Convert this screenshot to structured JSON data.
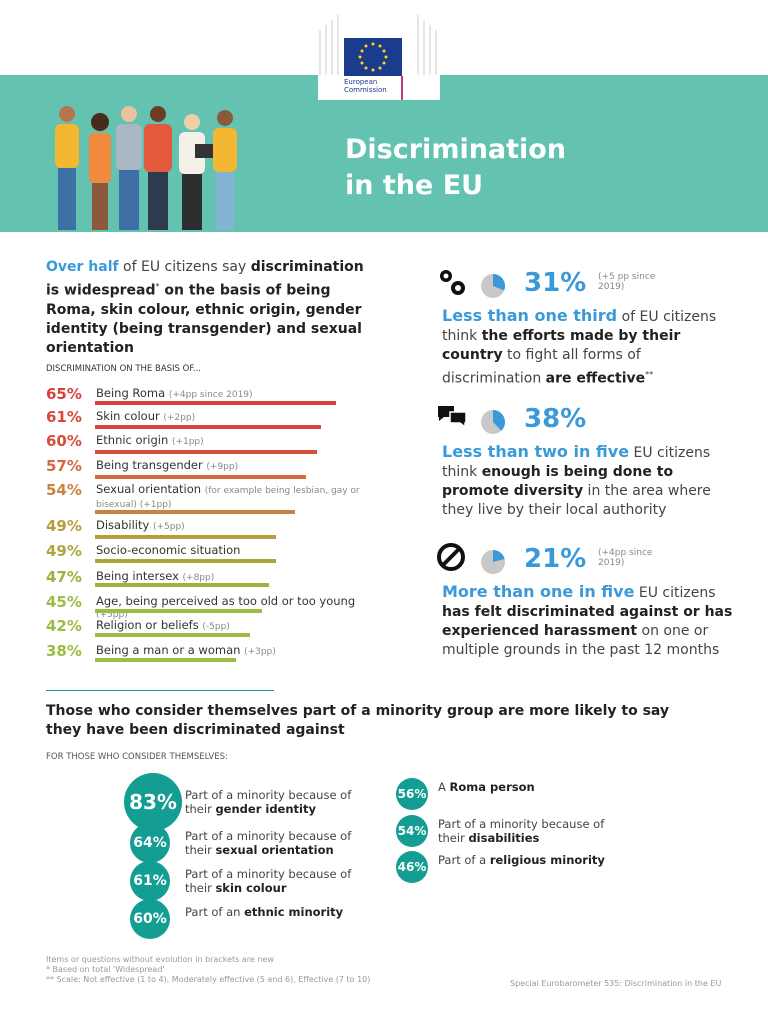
{
  "header": {
    "logo": "European Commission",
    "title": "Discrimination in the EU"
  },
  "intro": [
    "Over half",
    " of EU citizens say ",
    "discrimination is widespread",
    "*",
    " on the basis of being Roma, skin colour, ethnic origin, gender identity (being transgender) and sexual orientation"
  ],
  "bars": {
    "heading": "DISCRIMINATION ON THE BASIS OF...",
    "items": [
      {
        "label": "Being Roma",
        "note": "(+4pp since 2019)",
        "value": 65,
        "value_label": "65%",
        "color": "#d8403a"
      },
      {
        "label": "Skin colour",
        "note": "(+2pp)",
        "value": 61,
        "value_label": "61%",
        "color": "#d8473a"
      },
      {
        "label": "Ethnic origin",
        "note": "(+1pp)",
        "value": 60,
        "value_label": "60%",
        "color": "#d84d3b"
      },
      {
        "label": "Being transgender",
        "note": "(+9pp)",
        "value": 57,
        "value_label": "57%",
        "color": "#d4683e"
      },
      {
        "label": "Sexual orientation",
        "note": "(for example being lesbian, gay or bisexual) (+1pp)",
        "value": 54,
        "value_label": "54%",
        "color": "#c8843d"
      },
      {
        "label": "Disability",
        "note": "(+5pp)",
        "value": 49,
        "value_label": "49%",
        "color": "#b99c3c"
      },
      {
        "label": "Socio-economic situation",
        "note": "",
        "value": 49,
        "value_label": "49%",
        "color": "#ada63c"
      },
      {
        "label": "Being intersex",
        "note": "(+8pp)",
        "value": 47,
        "value_label": "47%",
        "color": "#a2ae3d"
      },
      {
        "label": "Age, being perceived as too old or too young",
        "note": "(+5pp)",
        "value": 45,
        "value_label": "45%",
        "color": "#9cbd42"
      },
      {
        "label": "Religion or beliefs",
        "note": "(-5pp)",
        "value": 42,
        "value_label": "42%",
        "color": "#9cbd42"
      },
      {
        "label": "Being a man or a woman",
        "note": "(+3pp)",
        "value": 38,
        "value_label": "38%",
        "color": "#9cbd42"
      }
    ]
  },
  "stats": [
    {
      "value": 31,
      "value_label": "31%",
      "change": "(+5 pp since 2019)",
      "text": [
        "Less than one third",
        " of EU citizens think ",
        "the efforts made by their country",
        " to fight all forms of discrimination ",
        "are effective",
        "**"
      ]
    },
    {
      "value": 38,
      "value_label": "38%",
      "change": "",
      "text": [
        "Less than two in five",
        " EU citizens think ",
        "enough is being done to promote diversity",
        " in the area where they live by their local authority"
      ]
    },
    {
      "value": 21,
      "value_label": "21%",
      "change": "(+4pp since 2019)",
      "text": [
        "More than one in five",
        " EU citizens ",
        "has felt discriminated against or has experienced harassment",
        " on one or multiple grounds in the past 12 months"
      ]
    }
  ],
  "minority": {
    "heading": "Those who consider themselves part of a minority group are more likely to say they have been discriminated against",
    "subheading": "FOR THOSE WHO CONSIDER THEMSELVES:",
    "items": [
      {
        "value_label": "83%",
        "text": [
          "Part of a minority because of their ",
          "gender identity"
        ]
      },
      {
        "value_label": "64%",
        "text": [
          "Part of a minority because of their ",
          "sexual orientation"
        ]
      },
      {
        "value_label": "61%",
        "text": [
          "Part of a minority because of their ",
          "skin colour"
        ]
      },
      {
        "value_label": "60%",
        "text": [
          "Part of an ",
          "ethnic minority"
        ]
      },
      {
        "value_label": "56%",
        "text": [
          "A ",
          "Roma person"
        ]
      },
      {
        "value_label": "54%",
        "text": [
          "Part of a minority because of their ",
          "disabilities"
        ]
      },
      {
        "value_label": "46%",
        "text": [
          "Part of a ",
          "religious minority"
        ]
      }
    ]
  },
  "footer": {
    "notes": [
      "Items or questions without evolution in brackets are new",
      "* Based on total 'Widespread'",
      "** Scale: Not effective (1 to 4), Moderately effective (5 and 6), Effective (7 to 10)"
    ],
    "source": "Special Eurobarometer 535: Discrimination in the EU"
  }
}
